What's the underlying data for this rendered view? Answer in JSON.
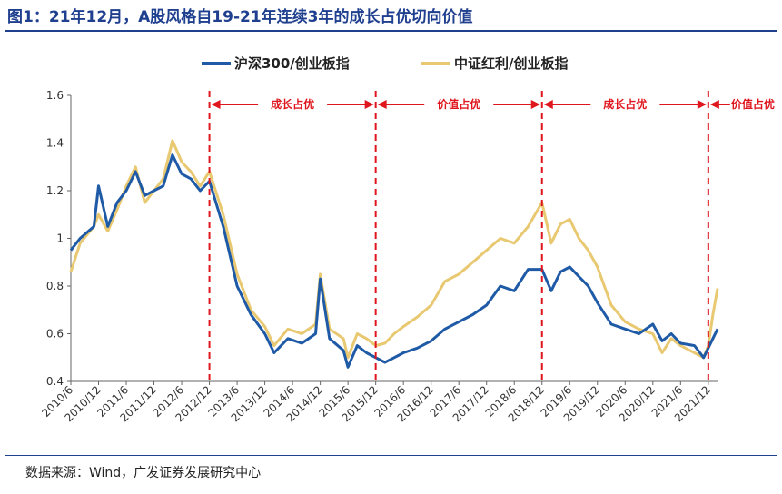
{
  "title": "图1：21年12月，A股风格自19-21年连续3年的成长占优切向价值",
  "source": "数据来源：Wind，广发证券发展研究中心",
  "colors": {
    "blue": "#1f5aa6",
    "gold": "#e8c870",
    "red": "#e0161e",
    "axis": "#666666",
    "title": "#1f3f8f"
  },
  "chart_data": {
    "type": "line",
    "ylim": [
      0.4,
      1.6
    ],
    "yticks": [
      "0.4",
      "0.6",
      "0.8",
      "1",
      "1.2",
      "1.4",
      "1.6"
    ],
    "xticks": [
      "2010/6",
      "2010/12",
      "2011/6",
      "2011/12",
      "2012/6",
      "2012/12",
      "2013/6",
      "2013/12",
      "2014/6",
      "2014/12",
      "2015/6",
      "2015/12",
      "2016/6",
      "2016/12",
      "2017/6",
      "2017/12",
      "2018/6",
      "2018/12",
      "2019/6",
      "2019/12",
      "2020/6",
      "2020/12",
      "2021/6",
      "2021/12"
    ],
    "xrange": [
      "2010/6",
      "2022/2"
    ],
    "legend": {
      "placement": "top-center"
    },
    "series": [
      {
        "name": "沪深300/创业板指",
        "color": "#1f5aa6",
        "points": [
          [
            "2010/6",
            0.95
          ],
          [
            "2010/8",
            1.0
          ],
          [
            "2010/11",
            1.05
          ],
          [
            "2010/12",
            1.22
          ],
          [
            "2011/2",
            1.05
          ],
          [
            "2011/4",
            1.15
          ],
          [
            "2011/6",
            1.2
          ],
          [
            "2011/8",
            1.28
          ],
          [
            "2011/10",
            1.18
          ],
          [
            "2011/12",
            1.2
          ],
          [
            "2012/2",
            1.22
          ],
          [
            "2012/4",
            1.35
          ],
          [
            "2012/6",
            1.27
          ],
          [
            "2012/8",
            1.25
          ],
          [
            "2012/10",
            1.2
          ],
          [
            "2012/12",
            1.24
          ],
          [
            "2013/3",
            1.05
          ],
          [
            "2013/6",
            0.8
          ],
          [
            "2013/9",
            0.68
          ],
          [
            "2013/12",
            0.6
          ],
          [
            "2014/2",
            0.52
          ],
          [
            "2014/5",
            0.58
          ],
          [
            "2014/8",
            0.56
          ],
          [
            "2014/11",
            0.6
          ],
          [
            "2014/12",
            0.83
          ],
          [
            "2015/2",
            0.58
          ],
          [
            "2015/5",
            0.53
          ],
          [
            "2015/6",
            0.46
          ],
          [
            "2015/8",
            0.55
          ],
          [
            "2015/10",
            0.52
          ],
          [
            "2015/12",
            0.5
          ],
          [
            "2016/2",
            0.48
          ],
          [
            "2016/4",
            0.5
          ],
          [
            "2016/6",
            0.52
          ],
          [
            "2016/9",
            0.54
          ],
          [
            "2016/12",
            0.57
          ],
          [
            "2017/3",
            0.62
          ],
          [
            "2017/6",
            0.65
          ],
          [
            "2017/9",
            0.68
          ],
          [
            "2017/12",
            0.72
          ],
          [
            "2018/3",
            0.8
          ],
          [
            "2018/6",
            0.78
          ],
          [
            "2018/9",
            0.87
          ],
          [
            "2018/12",
            0.87
          ],
          [
            "2019/2",
            0.78
          ],
          [
            "2019/4",
            0.86
          ],
          [
            "2019/6",
            0.88
          ],
          [
            "2019/8",
            0.84
          ],
          [
            "2019/10",
            0.8
          ],
          [
            "2019/12",
            0.73
          ],
          [
            "2020/3",
            0.64
          ],
          [
            "2020/6",
            0.62
          ],
          [
            "2020/9",
            0.6
          ],
          [
            "2020/12",
            0.64
          ],
          [
            "2021/2",
            0.57
          ],
          [
            "2021/4",
            0.6
          ],
          [
            "2021/6",
            0.56
          ],
          [
            "2021/9",
            0.55
          ],
          [
            "2021/11",
            0.5
          ],
          [
            "2021/12",
            0.54
          ],
          [
            "2022/1",
            0.58
          ],
          [
            "2022/2",
            0.62
          ]
        ]
      },
      {
        "name": "中证红利/创业板指",
        "color": "#e8c870",
        "points": [
          [
            "2010/6",
            0.86
          ],
          [
            "2010/8",
            0.98
          ],
          [
            "2010/11",
            1.05
          ],
          [
            "2010/12",
            1.1
          ],
          [
            "2011/2",
            1.03
          ],
          [
            "2011/4",
            1.12
          ],
          [
            "2011/6",
            1.22
          ],
          [
            "2011/8",
            1.3
          ],
          [
            "2011/10",
            1.15
          ],
          [
            "2011/12",
            1.2
          ],
          [
            "2012/2",
            1.25
          ],
          [
            "2012/4",
            1.41
          ],
          [
            "2012/6",
            1.32
          ],
          [
            "2012/8",
            1.28
          ],
          [
            "2012/10",
            1.22
          ],
          [
            "2012/12",
            1.28
          ],
          [
            "2013/3",
            1.1
          ],
          [
            "2013/6",
            0.85
          ],
          [
            "2013/9",
            0.7
          ],
          [
            "2013/12",
            0.63
          ],
          [
            "2014/2",
            0.55
          ],
          [
            "2014/5",
            0.62
          ],
          [
            "2014/8",
            0.6
          ],
          [
            "2014/11",
            0.64
          ],
          [
            "2014/12",
            0.85
          ],
          [
            "2015/2",
            0.62
          ],
          [
            "2015/5",
            0.58
          ],
          [
            "2015/6",
            0.5
          ],
          [
            "2015/8",
            0.6
          ],
          [
            "2015/10",
            0.58
          ],
          [
            "2015/12",
            0.55
          ],
          [
            "2016/2",
            0.56
          ],
          [
            "2016/4",
            0.6
          ],
          [
            "2016/6",
            0.63
          ],
          [
            "2016/9",
            0.67
          ],
          [
            "2016/12",
            0.72
          ],
          [
            "2017/3",
            0.82
          ],
          [
            "2017/6",
            0.85
          ],
          [
            "2017/9",
            0.9
          ],
          [
            "2017/12",
            0.95
          ],
          [
            "2018/3",
            1.0
          ],
          [
            "2018/6",
            0.98
          ],
          [
            "2018/9",
            1.05
          ],
          [
            "2018/12",
            1.15
          ],
          [
            "2019/2",
            0.98
          ],
          [
            "2019/4",
            1.06
          ],
          [
            "2019/6",
            1.08
          ],
          [
            "2019/8",
            1.0
          ],
          [
            "2019/10",
            0.95
          ],
          [
            "2019/12",
            0.88
          ],
          [
            "2020/3",
            0.72
          ],
          [
            "2020/6",
            0.65
          ],
          [
            "2020/9",
            0.62
          ],
          [
            "2020/12",
            0.6
          ],
          [
            "2021/2",
            0.52
          ],
          [
            "2021/4",
            0.58
          ],
          [
            "2021/6",
            0.55
          ],
          [
            "2021/9",
            0.52
          ],
          [
            "2021/11",
            0.5
          ],
          [
            "2021/12",
            0.55
          ],
          [
            "2022/1",
            0.68
          ],
          [
            "2022/2",
            0.79
          ]
        ]
      }
    ],
    "phase_boundaries": [
      "2012/12",
      "2015/12",
      "2018/12",
      "2021/12"
    ],
    "phases": [
      {
        "label": "成长占优",
        "from": "2012/12",
        "to": "2015/12"
      },
      {
        "label": "价值占优",
        "from": "2015/12",
        "to": "2018/12"
      },
      {
        "label": "成长占优",
        "from": "2018/12",
        "to": "2021/12"
      },
      {
        "label": "价值占优",
        "from": "2021/12",
        "to": "2022/2"
      }
    ]
  }
}
